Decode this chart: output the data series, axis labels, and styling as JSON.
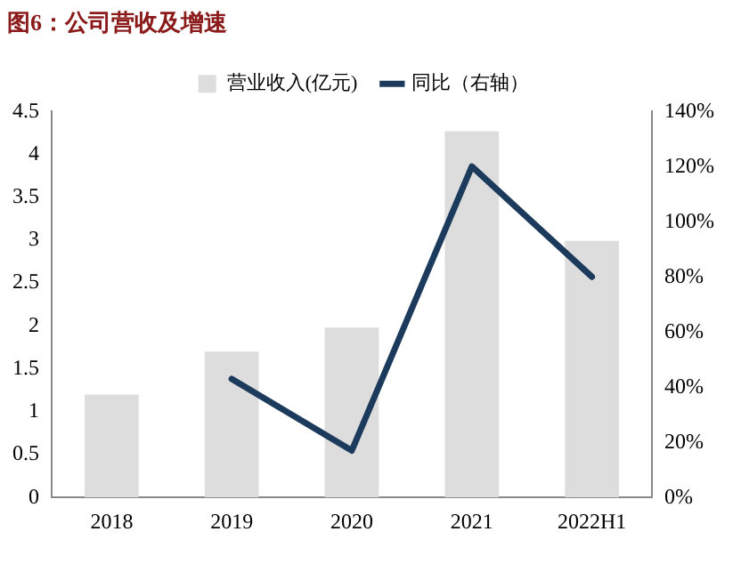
{
  "chart_data": {
    "type": "bar",
    "title": "图6：公司营收及增速",
    "categories": [
      "2018",
      "2019",
      "2020",
      "2021",
      "2022H1"
    ],
    "series": [
      {
        "name": "营业收入(亿元)",
        "color": "#dddddd",
        "values": [
          1.2,
          1.7,
          1.98,
          4.27,
          2.99
        ]
      },
      {
        "name": "同比（右轴）",
        "type": "line",
        "axis": "y2",
        "color": "#1b3a5c",
        "values": [
          null,
          43,
          17,
          120,
          80
        ]
      }
    ],
    "ylim": [
      0,
      4.5
    ],
    "yticks": [
      0,
      0.5,
      1,
      1.5,
      2,
      2.5,
      3,
      3.5,
      4,
      4.5
    ],
    "y2lim": [
      0,
      140
    ],
    "y2ticks": [
      {
        "value": 0,
        "label": "0%"
      },
      {
        "value": 20,
        "label": "20%"
      },
      {
        "value": 40,
        "label": "40%"
      },
      {
        "value": 60,
        "label": "60%"
      },
      {
        "value": 80,
        "label": "80%"
      },
      {
        "value": 100,
        "label": "100%"
      },
      {
        "value": 120,
        "label": "120%"
      },
      {
        "value": 140,
        "label": "140%"
      }
    ],
    "grid": false,
    "legend": "top",
    "marker": "none",
    "line_style": "solid"
  }
}
